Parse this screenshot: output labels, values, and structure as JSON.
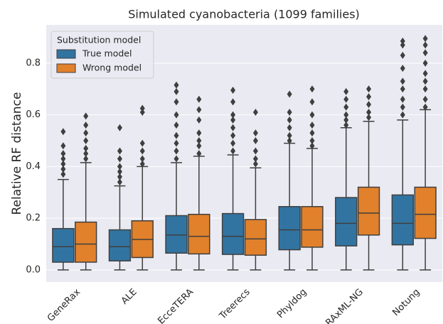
{
  "chart_data": {
    "type": "box",
    "title": "Simulated cyanobacteria (1099 families)",
    "y_label": "Relative RF distance",
    "legend_title": "Substitution model",
    "legend_position": "upper left",
    "grid": true,
    "categories": [
      "GeneRax",
      "ALE",
      "EcceTERA",
      "Treerecs",
      "Phyldog",
      "RAxML-NG",
      "Notung"
    ],
    "ylim": [
      -0.047,
      0.948
    ],
    "yticks": [
      {
        "value": 0,
        "label": "0.0"
      },
      0.2,
      0.4,
      0.6,
      0.8
    ],
    "series": [
      {
        "name": "True model",
        "color": "#3274a1",
        "whislo": [
          0,
          0,
          0,
          0,
          0,
          0,
          0
        ],
        "q1": [
          0.03,
          0.035,
          0.065,
          0.06,
          0.078,
          0.093,
          0.097
        ],
        "med": [
          0.09,
          0.09,
          0.135,
          0.13,
          0.155,
          0.18,
          0.18
        ],
        "q3": [
          0.16,
          0.155,
          0.21,
          0.218,
          0.245,
          0.28,
          0.29
        ],
        "whishi": [
          0.35,
          0.325,
          0.415,
          0.445,
          0.49,
          0.55,
          0.58
        ],
        "fliers": [
          [
            0.37,
            0.39,
            0.41,
            0.43,
            0.45,
            0.48,
            0.535
          ],
          [
            0.34,
            0.36,
            0.38,
            0.4,
            0.43,
            0.46,
            0.55
          ],
          [
            0.43,
            0.46,
            0.49,
            0.52,
            0.56,
            0.6,
            0.65,
            0.69,
            0.715
          ],
          [
            0.46,
            0.49,
            0.52,
            0.55,
            0.58,
            0.6,
            0.65,
            0.695
          ],
          [
            0.5,
            0.52,
            0.55,
            0.58,
            0.61,
            0.68
          ],
          [
            0.56,
            0.58,
            0.6,
            0.63,
            0.66,
            0.69
          ],
          [
            0.6,
            0.63,
            0.66,
            0.7,
            0.73,
            0.78,
            0.83,
            0.87,
            0.885
          ]
        ]
      },
      {
        "name": "Wrong model",
        "color": "#e1812c",
        "whislo": [
          0,
          0,
          0,
          0,
          0,
          0,
          0
        ],
        "q1": [
          0.03,
          0.048,
          0.062,
          0.057,
          0.088,
          0.135,
          0.122
        ],
        "med": [
          0.1,
          0.118,
          0.13,
          0.12,
          0.155,
          0.22,
          0.215
        ],
        "q3": [
          0.185,
          0.19,
          0.215,
          0.195,
          0.245,
          0.32,
          0.32
        ],
        "whishi": [
          0.415,
          0.4,
          0.44,
          0.395,
          0.47,
          0.575,
          0.62
        ],
        "fliers": [
          [
            0.43,
            0.45,
            0.47,
            0.5,
            0.53,
            0.56,
            0.595
          ],
          [
            0.41,
            0.43,
            0.46,
            0.49,
            0.61,
            0.625
          ],
          [
            0.45,
            0.48,
            0.5,
            0.53,
            0.58,
            0.62,
            0.66
          ],
          [
            0.41,
            0.43,
            0.46,
            0.5,
            0.53,
            0.61
          ],
          [
            0.48,
            0.5,
            0.53,
            0.56,
            0.6,
            0.65,
            0.7
          ],
          [
            0.59,
            0.61,
            0.64,
            0.67,
            0.7
          ],
          [
            0.63,
            0.66,
            0.7,
            0.73,
            0.76,
            0.8,
            0.84,
            0.87,
            0.895
          ]
        ]
      }
    ]
  }
}
